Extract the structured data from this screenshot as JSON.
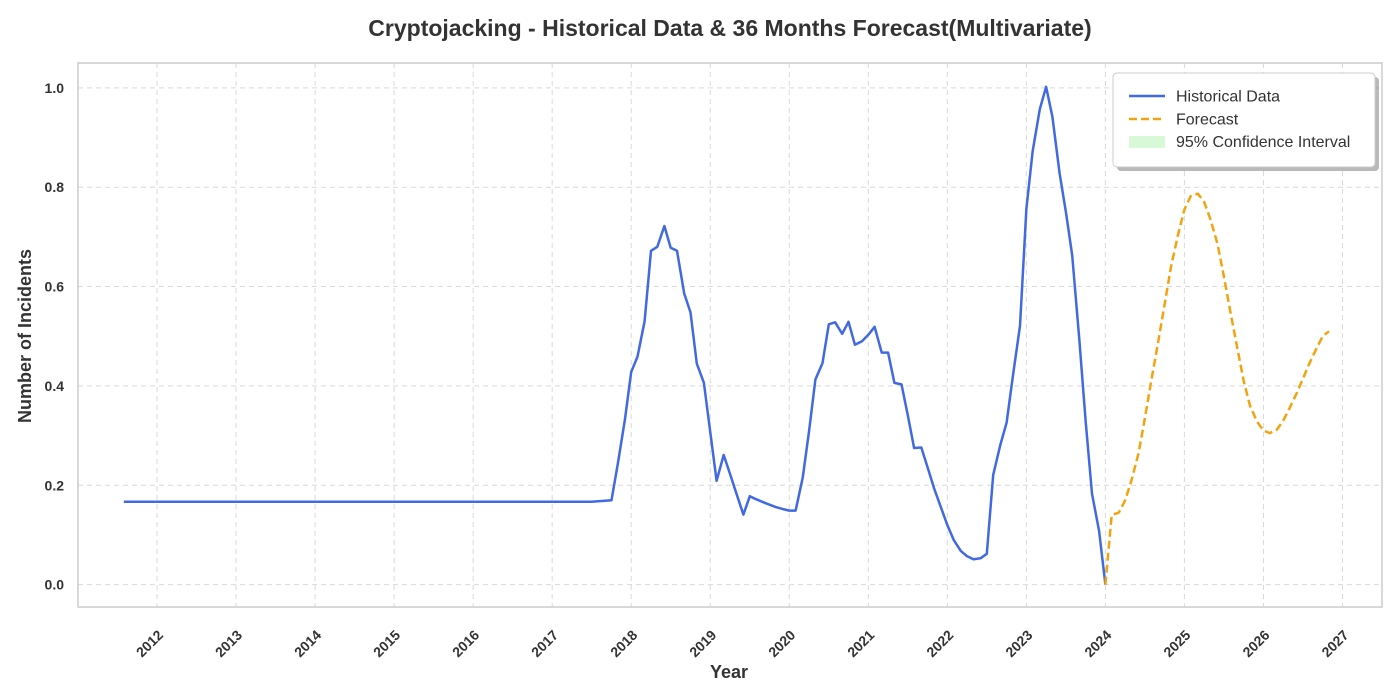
{
  "chart_data": {
    "type": "line",
    "title": "Cryptojacking - Historical Data & 36 Months Forecast(Multivariate)",
    "xlabel": "Year",
    "ylabel": "Number of Incidents",
    "xlim": [
      2011.0,
      2027.5
    ],
    "ylim": [
      -0.045,
      1.05
    ],
    "x_ticks": [
      2012,
      2013,
      2014,
      2015,
      2016,
      2017,
      2018,
      2019,
      2020,
      2021,
      2022,
      2023,
      2024,
      2025,
      2026,
      2027
    ],
    "x_tick_labels": [
      "2012",
      "2013",
      "2014",
      "2015",
      "2016",
      "2017",
      "2018",
      "2019",
      "2020",
      "2021",
      "2022",
      "2023",
      "2024",
      "2025",
      "2026",
      "2027"
    ],
    "y_ticks": [
      0.0,
      0.2,
      0.4,
      0.6,
      0.8,
      1.0
    ],
    "y_tick_labels": [
      "0.0",
      "0.2",
      "0.4",
      "0.6",
      "0.8",
      "1.0"
    ],
    "grid": true,
    "legend_position": "top-right",
    "legend": [
      {
        "key": "historical",
        "label": "Historical Data"
      },
      {
        "key": "forecast",
        "label": "Forecast"
      },
      {
        "key": "ci",
        "label": "95% Confidence Interval"
      }
    ],
    "colors": {
      "historical": "#4169e1",
      "forecast": "#f2a30f",
      "ci": "#90ee90",
      "grid": "#d9d9d9",
      "frame": "#cccccc"
    },
    "series": [
      {
        "key": "historical",
        "name": "Historical Data",
        "style": "solid",
        "points": [
          [
            2011.58,
            0.167
          ],
          [
            2012.0,
            0.167
          ],
          [
            2013.0,
            0.167
          ],
          [
            2014.0,
            0.167
          ],
          [
            2015.0,
            0.167
          ],
          [
            2016.0,
            0.167
          ],
          [
            2017.0,
            0.167
          ],
          [
            2017.5,
            0.167
          ],
          [
            2017.58,
            0.168
          ],
          [
            2017.67,
            0.169
          ],
          [
            2017.75,
            0.17
          ],
          [
            2017.83,
            0.243
          ],
          [
            2017.92,
            0.332
          ],
          [
            2018.0,
            0.428
          ],
          [
            2018.08,
            0.459
          ],
          [
            2018.17,
            0.53
          ],
          [
            2018.25,
            0.672
          ],
          [
            2018.33,
            0.68
          ],
          [
            2018.42,
            0.722
          ],
          [
            2018.5,
            0.678
          ],
          [
            2018.58,
            0.672
          ],
          [
            2018.67,
            0.586
          ],
          [
            2018.75,
            0.548
          ],
          [
            2018.83,
            0.445
          ],
          [
            2018.92,
            0.406
          ],
          [
            2019.0,
            0.308
          ],
          [
            2019.08,
            0.209
          ],
          [
            2019.17,
            0.261
          ],
          [
            2019.25,
            0.223
          ],
          [
            2019.33,
            0.184
          ],
          [
            2019.42,
            0.141
          ],
          [
            2019.5,
            0.178
          ],
          [
            2019.58,
            0.172
          ],
          [
            2019.67,
            0.166
          ],
          [
            2019.75,
            0.161
          ],
          [
            2019.83,
            0.156
          ],
          [
            2019.92,
            0.152
          ],
          [
            2020.0,
            0.149
          ],
          [
            2020.08,
            0.149
          ],
          [
            2020.17,
            0.215
          ],
          [
            2020.25,
            0.308
          ],
          [
            2020.33,
            0.413
          ],
          [
            2020.42,
            0.446
          ],
          [
            2020.5,
            0.524
          ],
          [
            2020.58,
            0.528
          ],
          [
            2020.67,
            0.505
          ],
          [
            2020.75,
            0.529
          ],
          [
            2020.83,
            0.483
          ],
          [
            2020.92,
            0.49
          ],
          [
            2021.0,
            0.503
          ],
          [
            2021.08,
            0.519
          ],
          [
            2021.17,
            0.467
          ],
          [
            2021.25,
            0.467
          ],
          [
            2021.33,
            0.406
          ],
          [
            2021.42,
            0.403
          ],
          [
            2021.5,
            0.341
          ],
          [
            2021.58,
            0.275
          ],
          [
            2021.67,
            0.276
          ],
          [
            2021.75,
            0.236
          ],
          [
            2021.83,
            0.195
          ],
          [
            2021.92,
            0.155
          ],
          [
            2022.0,
            0.12
          ],
          [
            2022.08,
            0.09
          ],
          [
            2022.17,
            0.068
          ],
          [
            2022.25,
            0.057
          ],
          [
            2022.33,
            0.051
          ],
          [
            2022.42,
            0.053
          ],
          [
            2022.5,
            0.062
          ],
          [
            2022.58,
            0.221
          ],
          [
            2022.67,
            0.281
          ],
          [
            2022.75,
            0.326
          ],
          [
            2022.83,
            0.42
          ],
          [
            2022.92,
            0.521
          ],
          [
            2023.0,
            0.757
          ],
          [
            2023.08,
            0.873
          ],
          [
            2023.17,
            0.957
          ],
          [
            2023.25,
            1.002
          ],
          [
            2023.33,
            0.942
          ],
          [
            2023.42,
            0.828
          ],
          [
            2023.5,
            0.75
          ],
          [
            2023.58,
            0.663
          ],
          [
            2023.67,
            0.494
          ],
          [
            2023.75,
            0.33
          ],
          [
            2023.83,
            0.183
          ],
          [
            2023.92,
            0.108
          ],
          [
            2024.0,
            0.0
          ]
        ]
      },
      {
        "key": "forecast",
        "name": "Forecast",
        "style": "dashed",
        "points": [
          [
            2024.0,
            0.0
          ],
          [
            2024.08,
            0.14
          ],
          [
            2024.17,
            0.145
          ],
          [
            2024.25,
            0.17
          ],
          [
            2024.33,
            0.21
          ],
          [
            2024.42,
            0.265
          ],
          [
            2024.5,
            0.335
          ],
          [
            2024.58,
            0.41
          ],
          [
            2024.67,
            0.49
          ],
          [
            2024.75,
            0.565
          ],
          [
            2024.83,
            0.64
          ],
          [
            2024.92,
            0.705
          ],
          [
            2025.0,
            0.755
          ],
          [
            2025.08,
            0.782
          ],
          [
            2025.17,
            0.787
          ],
          [
            2025.25,
            0.77
          ],
          [
            2025.33,
            0.735
          ],
          [
            2025.42,
            0.685
          ],
          [
            2025.5,
            0.62
          ],
          [
            2025.58,
            0.55
          ],
          [
            2025.67,
            0.475
          ],
          [
            2025.75,
            0.41
          ],
          [
            2025.83,
            0.36
          ],
          [
            2025.92,
            0.328
          ],
          [
            2026.0,
            0.31
          ],
          [
            2026.08,
            0.305
          ],
          [
            2026.17,
            0.312
          ],
          [
            2026.25,
            0.33
          ],
          [
            2026.33,
            0.355
          ],
          [
            2026.42,
            0.385
          ],
          [
            2026.5,
            0.415
          ],
          [
            2026.58,
            0.445
          ],
          [
            2026.67,
            0.475
          ],
          [
            2026.75,
            0.5
          ],
          [
            2026.83,
            0.51
          ]
        ]
      }
    ]
  }
}
